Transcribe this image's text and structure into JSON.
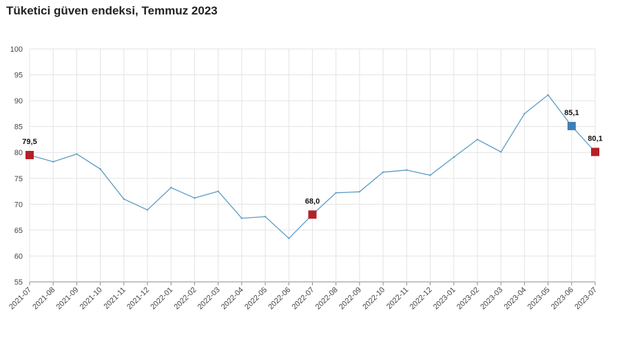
{
  "title": "Tüketici güven endeksi, Temmuz 2023",
  "chart_data": {
    "type": "line",
    "title": "Tüketici güven endeksi, Temmuz 2023",
    "xlabel": "",
    "ylabel": "",
    "ylim": [
      55,
      100
    ],
    "yticks": [
      55,
      60,
      65,
      70,
      75,
      80,
      85,
      90,
      95,
      100
    ],
    "grid": true,
    "categories": [
      "2021-07",
      "2021-08",
      "2021-09",
      "2021-10",
      "2021-11",
      "2021-12",
      "2022-01",
      "2022-02",
      "2022-03",
      "2022-04",
      "2022-05",
      "2022-06",
      "2022-07",
      "2022-08",
      "2022-09",
      "2022-10",
      "2022-11",
      "2022-12",
      "2023-01",
      "2023-02",
      "2023-03",
      "2023-04",
      "2023-05",
      "2023-06",
      "2023-07"
    ],
    "series": [
      {
        "values": [
          79.5,
          78.2,
          79.7,
          76.8,
          71.0,
          68.9,
          73.2,
          71.2,
          72.5,
          67.3,
          67.6,
          63.4,
          68.0,
          72.2,
          72.4,
          76.2,
          76.6,
          75.6,
          79.1,
          82.5,
          80.1,
          87.5,
          91.1,
          85.1,
          80.1
        ],
        "color": "#5b9bc4"
      }
    ],
    "highlights": [
      {
        "category": "2021-07",
        "value": 79.5,
        "label": "79,5",
        "color": "#b52025"
      },
      {
        "category": "2022-07",
        "value": 68.0,
        "label": "68,0",
        "color": "#b52025"
      },
      {
        "category": "2023-06",
        "value": 85.1,
        "label": "85,1",
        "color": "#3d7fb7"
      },
      {
        "category": "2023-07",
        "value": 80.1,
        "label": "80,1",
        "color": "#b52025"
      }
    ]
  }
}
